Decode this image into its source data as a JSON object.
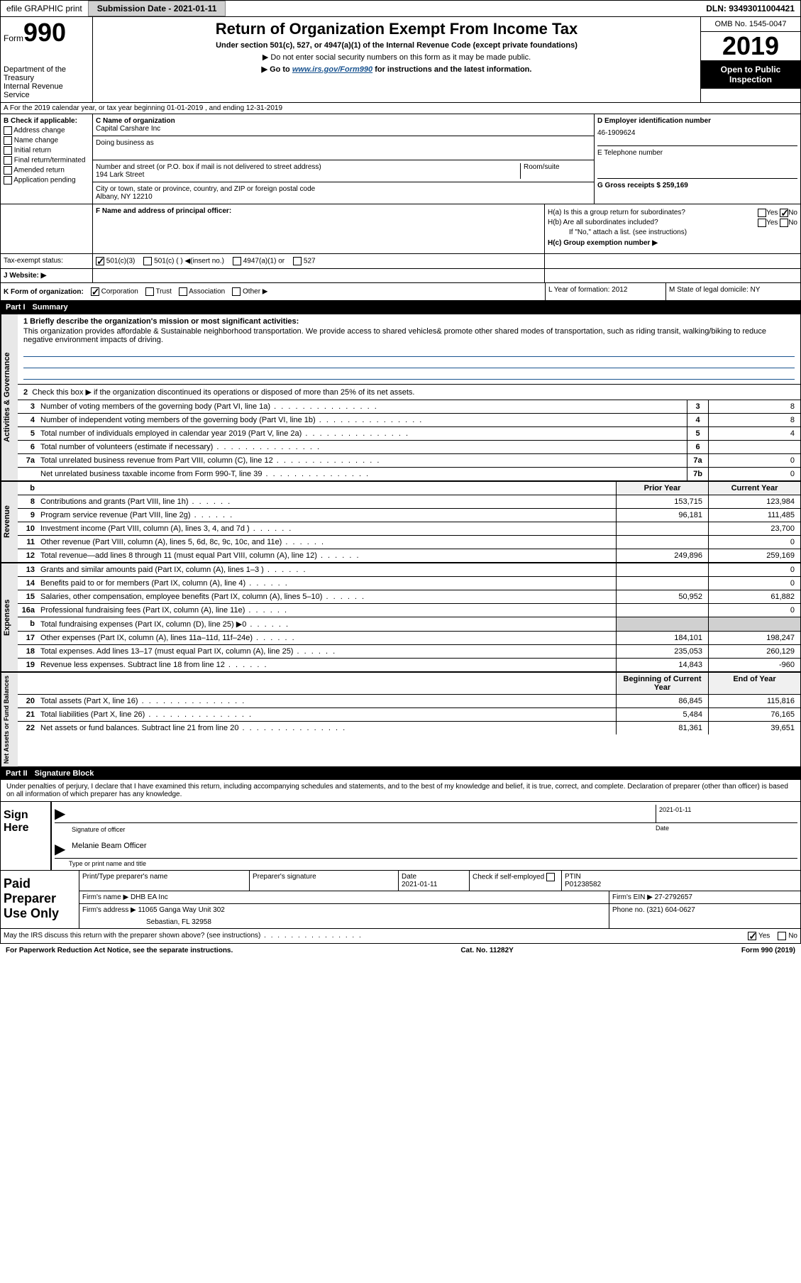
{
  "topbar": {
    "efile": "efile GRAPHIC print",
    "submission": "Submission Date - 2021-01-11",
    "dln": "DLN: 93493011004421"
  },
  "header": {
    "form_prefix": "Form",
    "form_number": "990",
    "dept1": "Department of the Treasury",
    "dept2": "Internal Revenue Service",
    "title": "Return of Organization Exempt From Income Tax",
    "subtitle1": "Under section 501(c), 527, or 4947(a)(1) of the Internal Revenue Code (except private foundations)",
    "subtitle2": "▶ Do not enter social security numbers on this form as it may be made public.",
    "goto_prefix": "▶ Go to ",
    "goto_link": "www.irs.gov/Form990",
    "goto_suffix": " for instructions and the latest information.",
    "omb": "OMB No. 1545-0047",
    "year": "2019",
    "open1": "Open to Public",
    "open2": "Inspection"
  },
  "row_a": "A  For the 2019 calendar year, or tax year beginning 01-01-2019    , and ending 12-31-2019",
  "section_b": {
    "label": "B Check if applicable:",
    "items": [
      "Address change",
      "Name change",
      "Initial return",
      "Final return/terminated",
      "Amended return",
      "Application pending"
    ]
  },
  "section_c": {
    "name_label": "C Name of organization",
    "name": "Capital Carshare Inc",
    "dba_label": "Doing business as",
    "addr_label": "Number and street (or P.O. box if mail is not delivered to street address)",
    "room_label": "Room/suite",
    "address": "194 Lark Street",
    "city_label": "City or town, state or province, country, and ZIP or foreign postal code",
    "city": "Albany, NY  12210"
  },
  "section_d": {
    "ein_label": "D Employer identification number",
    "ein": "46-1909624",
    "phone_label": "E Telephone number",
    "gross_label": "G Gross receipts $ 259,169"
  },
  "section_f": {
    "label": "F  Name and address of principal officer:"
  },
  "section_h": {
    "ha": "H(a)  Is this a group return for subordinates?",
    "hb": "H(b)  Are all subordinates included?",
    "hb_note": "If \"No,\" attach a list. (see instructions)",
    "hc": "H(c)  Group exemption number ▶",
    "yes": "Yes",
    "no": "No"
  },
  "tax": {
    "label": "Tax-exempt status:",
    "opt1": "501(c)(3)",
    "opt2": "501(c) (  ) ◀(insert no.)",
    "opt3": "4947(a)(1) or",
    "opt4": "527"
  },
  "website": {
    "label": "J  Website: ▶"
  },
  "section_k": {
    "label": "K Form of organization:",
    "corp": "Corporation",
    "trust": "Trust",
    "assoc": "Association",
    "other": "Other ▶",
    "l_label": "L Year of formation: 2012",
    "m_label": "M State of legal domicile: NY"
  },
  "part1": {
    "label": "Part I",
    "title": "Summary"
  },
  "summary": {
    "q1_label": "1  Briefly describe the organization's mission or most significant activities:",
    "q1_text": "This organization provides affordable & Sustainable neighborhood transportation. We provide access to shared vehicles& promote other shared modes of transportation, such as riding transit, walking/biking to reduce negative environment impacts of driving.",
    "q2": "Check this box ▶      if the organization discontinued its operations or disposed of more than 25% of its net assets.",
    "rows": [
      {
        "n": "3",
        "label": "Number of voting members of the governing body (Part VI, line 1a)",
        "box": "3",
        "v": "8"
      },
      {
        "n": "4",
        "label": "Number of independent voting members of the governing body (Part VI, line 1b)",
        "box": "4",
        "v": "8"
      },
      {
        "n": "5",
        "label": "Total number of individuals employed in calendar year 2019 (Part V, line 2a)",
        "box": "5",
        "v": "4"
      },
      {
        "n": "6",
        "label": "Total number of volunteers (estimate if necessary)",
        "box": "6",
        "v": ""
      },
      {
        "n": "7a",
        "label": "Total unrelated business revenue from Part VIII, column (C), line 12",
        "box": "7a",
        "v": "0"
      },
      {
        "n": "",
        "label": "Net unrelated business taxable income from Form 990-T, line 39",
        "box": "7b",
        "v": "0"
      }
    ]
  },
  "vert_labels": {
    "gov": "Activities & Governance",
    "rev": "Revenue",
    "exp": "Expenses",
    "net": "Net Assets or Fund Balances"
  },
  "cols": {
    "prior": "Prior Year",
    "current": "Current Year",
    "begin": "Beginning of Current Year",
    "end": "End of Year"
  },
  "revenue": [
    {
      "n": "8",
      "label": "Contributions and grants (Part VIII, line 1h)",
      "p": "153,715",
      "c": "123,984"
    },
    {
      "n": "9",
      "label": "Program service revenue (Part VIII, line 2g)",
      "p": "96,181",
      "c": "111,485"
    },
    {
      "n": "10",
      "label": "Investment income (Part VIII, column (A), lines 3, 4, and 7d )",
      "p": "",
      "c": "23,700"
    },
    {
      "n": "11",
      "label": "Other revenue (Part VIII, column (A), lines 5, 6d, 8c, 9c, 10c, and 11e)",
      "p": "",
      "c": "0"
    },
    {
      "n": "12",
      "label": "Total revenue—add lines 8 through 11 (must equal Part VIII, column (A), line 12)",
      "p": "249,896",
      "c": "259,169"
    }
  ],
  "expenses": [
    {
      "n": "13",
      "label": "Grants and similar amounts paid (Part IX, column (A), lines 1–3 )",
      "p": "",
      "c": "0"
    },
    {
      "n": "14",
      "label": "Benefits paid to or for members (Part IX, column (A), line 4)",
      "p": "",
      "c": "0"
    },
    {
      "n": "15",
      "label": "Salaries, other compensation, employee benefits (Part IX, column (A), lines 5–10)",
      "p": "50,952",
      "c": "61,882"
    },
    {
      "n": "16a",
      "label": "Professional fundraising fees (Part IX, column (A), line 11e)",
      "p": "",
      "c": "0"
    },
    {
      "n": "b",
      "label": "Total fundraising expenses (Part IX, column (D), line 25) ▶0",
      "p": "gray",
      "c": "gray"
    },
    {
      "n": "17",
      "label": "Other expenses (Part IX, column (A), lines 11a–11d, 11f–24e)",
      "p": "184,101",
      "c": "198,247"
    },
    {
      "n": "18",
      "label": "Total expenses. Add lines 13–17 (must equal Part IX, column (A), line 25)",
      "p": "235,053",
      "c": "260,129"
    },
    {
      "n": "19",
      "label": "Revenue less expenses. Subtract line 18 from line 12",
      "p": "14,843",
      "c": "-960"
    }
  ],
  "netassets": [
    {
      "n": "20",
      "label": "Total assets (Part X, line 16)",
      "p": "86,845",
      "c": "115,816"
    },
    {
      "n": "21",
      "label": "Total liabilities (Part X, line 26)",
      "p": "5,484",
      "c": "76,165"
    },
    {
      "n": "22",
      "label": "Net assets or fund balances. Subtract line 21 from line 20",
      "p": "81,361",
      "c": "39,651"
    }
  ],
  "part2": {
    "label": "Part II",
    "title": "Signature Block"
  },
  "sig": {
    "declaration": "Under penalties of perjury, I declare that I have examined this return, including accompanying schedules and statements, and to the best of my knowledge and belief, it is true, correct, and complete. Declaration of preparer (other than officer) is based on all information of which preparer has any knowledge.",
    "sign_here": "Sign Here",
    "sig_officer": "Signature of officer",
    "date_label": "Date",
    "date_val": "2021-01-11",
    "name": "Melanie Beam  Officer",
    "type_label": "Type or print name and title"
  },
  "preparer": {
    "label": "Paid Preparer Use Only",
    "print_label": "Print/Type preparer's name",
    "sig_label": "Preparer's signature",
    "date_label": "Date",
    "date_val": "2021-01-11",
    "check_label": "Check       if self-employed",
    "ptin_label": "PTIN",
    "ptin": "P01238582",
    "firm_name_label": "Firm's name    ▶",
    "firm_name": "DHB EA Inc",
    "firm_ein_label": "Firm's EIN ▶",
    "firm_ein": "27-2792657",
    "firm_addr_label": "Firm's address ▶",
    "firm_addr1": "11065 Ganga Way Unit 302",
    "firm_addr2": "Sebastian, FL  32958",
    "phone_label": "Phone no.",
    "phone": "(321) 604-0627"
  },
  "discuss": {
    "text": "May the IRS discuss this return with the preparer shown above? (see instructions)",
    "yes": "Yes",
    "no": "No"
  },
  "footer": {
    "left": "For Paperwork Reduction Act Notice, see the separate instructions.",
    "center": "Cat. No. 11282Y",
    "right": "Form 990 (2019)"
  }
}
